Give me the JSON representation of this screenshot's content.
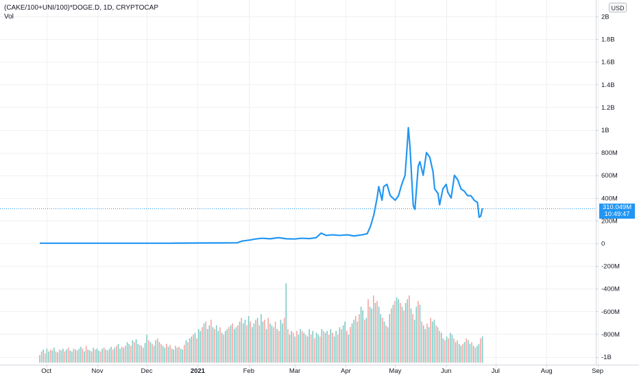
{
  "header": {
    "symbol_title": "(CAKE/100+UNI/100)*DOGE.D, 1D, CRYPTOCAP",
    "volume_label": "Vol"
  },
  "currency_button": "USD",
  "price_badge": {
    "value": "310.049M",
    "time": "10:49:47"
  },
  "colors": {
    "line": "#2196f3",
    "volume_up": "#7fcbc4",
    "volume_down": "#f5a3a3",
    "grid": "#eef0f3",
    "price_line": "#2196f3"
  },
  "chart_data": {
    "type": "line",
    "title": "(CAKE/100+UNI/100)*DOGE.D, 1D, CRYPTOCAP",
    "y_ticks": [
      "2B",
      "1.8B",
      "1.6B",
      "1.4B",
      "1.2B",
      "1B",
      "800M",
      "600M",
      "400M",
      "200M",
      "0",
      "-200M",
      "-400M",
      "-600M",
      "-800M",
      "-1B"
    ],
    "y_tick_values": [
      2000,
      1800,
      1600,
      1400,
      1200,
      1000,
      800,
      600,
      400,
      200,
      0,
      -200,
      -400,
      -600,
      -800,
      -1000
    ],
    "x_ticks": [
      {
        "label": "Oct",
        "bold": false
      },
      {
        "label": "Nov",
        "bold": false
      },
      {
        "label": "Dec",
        "bold": false
      },
      {
        "label": "2021",
        "bold": true
      },
      {
        "label": "Feb",
        "bold": false
      },
      {
        "label": "Mar",
        "bold": false
      },
      {
        "label": "Apr",
        "bold": false
      },
      {
        "label": "May",
        "bold": false
      },
      {
        "label": "Jun",
        "bold": false
      },
      {
        "label": "Jul",
        "bold": false
      },
      {
        "label": "Aug",
        "bold": false
      },
      {
        "label": "Sep",
        "bold": false
      }
    ],
    "ylim": [
      -1050,
      2050
    ],
    "series": [
      {
        "values_unit": "millions",
        "points": [
          [
            "2020-09-27",
            1
          ],
          [
            "2020-10-15",
            1
          ],
          [
            "2020-11-15",
            1
          ],
          [
            "2020-12-15",
            1
          ],
          [
            "2021-01-01",
            3
          ],
          [
            "2021-01-15",
            4
          ],
          [
            "2021-01-25",
            5
          ],
          [
            "2021-01-28",
            20
          ],
          [
            "2021-02-02",
            30
          ],
          [
            "2021-02-05",
            38
          ],
          [
            "2021-02-09",
            45
          ],
          [
            "2021-02-14",
            40
          ],
          [
            "2021-02-19",
            50
          ],
          [
            "2021-02-24",
            40
          ],
          [
            "2021-03-01",
            38
          ],
          [
            "2021-03-05",
            45
          ],
          [
            "2021-03-10",
            42
          ],
          [
            "2021-03-14",
            50
          ],
          [
            "2021-03-17",
            90
          ],
          [
            "2021-03-20",
            70
          ],
          [
            "2021-03-24",
            75
          ],
          [
            "2021-03-28",
            70
          ],
          [
            "2021-04-02",
            75
          ],
          [
            "2021-04-06",
            65
          ],
          [
            "2021-04-11",
            75
          ],
          [
            "2021-04-14",
            85
          ],
          [
            "2021-04-16",
            150
          ],
          [
            "2021-04-18",
            250
          ],
          [
            "2021-04-20",
            400
          ],
          [
            "2021-04-21",
            500
          ],
          [
            "2021-04-23",
            380
          ],
          [
            "2021-04-24",
            500
          ],
          [
            "2021-04-26",
            520
          ],
          [
            "2021-04-28",
            420
          ],
          [
            "2021-05-01",
            380
          ],
          [
            "2021-05-03",
            420
          ],
          [
            "2021-05-05",
            520
          ],
          [
            "2021-05-07",
            600
          ],
          [
            "2021-05-08",
            800
          ],
          [
            "2021-05-09",
            1020
          ],
          [
            "2021-05-10",
            850
          ],
          [
            "2021-05-11",
            580
          ],
          [
            "2021-05-12",
            330
          ],
          [
            "2021-05-13",
            300
          ],
          [
            "2021-05-15",
            680
          ],
          [
            "2021-05-16",
            720
          ],
          [
            "2021-05-18",
            600
          ],
          [
            "2021-05-20",
            800
          ],
          [
            "2021-05-22",
            760
          ],
          [
            "2021-05-24",
            630
          ],
          [
            "2021-05-25",
            480
          ],
          [
            "2021-05-27",
            440
          ],
          [
            "2021-05-28",
            340
          ],
          [
            "2021-05-30",
            480
          ],
          [
            "2021-06-01",
            520
          ],
          [
            "2021-06-02",
            450
          ],
          [
            "2021-06-04",
            400
          ],
          [
            "2021-06-06",
            600
          ],
          [
            "2021-06-08",
            560
          ],
          [
            "2021-06-10",
            480
          ],
          [
            "2021-06-12",
            460
          ],
          [
            "2021-06-14",
            420
          ],
          [
            "2021-06-16",
            420
          ],
          [
            "2021-06-18",
            380
          ],
          [
            "2021-06-20",
            360
          ],
          [
            "2021-06-21",
            230
          ],
          [
            "2021-06-22",
            240
          ],
          [
            "2021-06-23",
            310
          ]
        ]
      }
    ],
    "volume": {
      "start_date": "2020-09-27",
      "end_date": "2021-06-23",
      "ylim": [
        0,
        100
      ],
      "values": [
        8,
        12,
        14,
        10,
        15,
        12,
        14,
        13,
        16,
        12,
        11,
        14,
        13,
        15,
        12,
        14,
        16,
        13,
        12,
        15,
        14,
        13,
        15,
        17,
        15,
        12,
        18,
        14,
        13,
        12,
        16,
        14,
        15,
        13,
        12,
        15,
        16,
        14,
        13,
        15,
        17,
        14,
        16,
        18,
        20,
        15,
        17,
        16,
        18,
        22,
        20,
        18,
        24,
        22,
        25,
        20,
        19,
        18,
        16,
        21,
        30,
        24,
        22,
        20,
        18,
        24,
        26,
        22,
        20,
        18,
        16,
        20,
        17,
        19,
        15,
        14,
        18,
        16,
        17,
        15,
        14,
        19,
        24,
        22,
        26,
        28,
        30,
        32,
        26,
        36,
        34,
        38,
        42,
        44,
        36,
        40,
        46,
        38,
        36,
        40,
        34,
        38,
        32,
        30,
        34,
        36,
        38,
        40,
        42,
        36,
        38,
        40,
        44,
        48,
        42,
        46,
        40,
        50,
        44,
        38,
        42,
        46,
        48,
        40,
        52,
        44,
        46,
        36,
        48,
        42,
        40,
        38,
        44,
        36,
        34,
        46,
        42,
        48,
        85,
        36,
        30,
        34,
        32,
        28,
        34,
        30,
        36,
        34,
        32,
        30,
        28,
        36,
        30,
        34,
        26,
        32,
        30,
        28,
        36,
        34,
        32,
        34,
        30,
        36,
        32,
        28,
        34,
        30,
        38,
        36,
        40,
        44,
        34,
        30,
        38,
        42,
        46,
        50,
        44,
        52,
        60,
        56,
        46,
        48,
        68,
        60,
        58,
        72,
        64,
        66,
        60,
        52,
        48,
        44,
        40,
        38,
        52,
        58,
        62,
        66,
        70,
        68,
        64,
        60,
        56,
        64,
        68,
        72,
        58,
        52,
        46,
        60,
        66,
        62,
        44,
        40,
        36,
        42,
        38,
        48,
        44,
        46,
        40,
        38,
        34,
        32,
        26,
        24,
        28,
        26,
        32,
        30,
        26,
        22,
        24,
        20,
        18,
        20,
        22,
        26,
        24,
        20,
        22,
        18,
        16,
        18,
        20,
        26,
        28
      ],
      "up": [
        true,
        false,
        true,
        false,
        true,
        true,
        false,
        true,
        true,
        false,
        true,
        false,
        true,
        true,
        false,
        true,
        false,
        true,
        true,
        false,
        true,
        false,
        true,
        true,
        false,
        true,
        false,
        true,
        true,
        false,
        true,
        false,
        true,
        true,
        false,
        true,
        false,
        true,
        false,
        true,
        true,
        false,
        true,
        false,
        true,
        true,
        false,
        true,
        false,
        true,
        true,
        false,
        true,
        false,
        true,
        true,
        false,
        true,
        false,
        true,
        true,
        false,
        true,
        false,
        true,
        true,
        false,
        true,
        false,
        true,
        true,
        false,
        true,
        false,
        true,
        true,
        false,
        true,
        false,
        true,
        true,
        false,
        true,
        false,
        true,
        true,
        false,
        true,
        false,
        true,
        true,
        false,
        true,
        false,
        true,
        true,
        false,
        true,
        false,
        true,
        true,
        false,
        true,
        false,
        true,
        true,
        false,
        true,
        false,
        true,
        true,
        false,
        true,
        false,
        true,
        true,
        false,
        true,
        false,
        true,
        true,
        false,
        true,
        false,
        true,
        true,
        false,
        true,
        false,
        true,
        true,
        false,
        false,
        true,
        false,
        true,
        true,
        false,
        true,
        false,
        true,
        true,
        false,
        true,
        false,
        true,
        true,
        false,
        true,
        false,
        true,
        true,
        false,
        true,
        false,
        true,
        true,
        false,
        true,
        false,
        true,
        true,
        false,
        true,
        false,
        true,
        true,
        false,
        true,
        false,
        true,
        true,
        false,
        true,
        false,
        true,
        true,
        false,
        true,
        false,
        true,
        true,
        false,
        true,
        false,
        true,
        true,
        false,
        true,
        false,
        true,
        true,
        false,
        true,
        false,
        true,
        true,
        false,
        true,
        false,
        true,
        true,
        false,
        true,
        false,
        true,
        true,
        false,
        true,
        false,
        true,
        true,
        false,
        true,
        false,
        true,
        true,
        false,
        true,
        false,
        true,
        true,
        false,
        true,
        false,
        true,
        true,
        false,
        true,
        false,
        true,
        true,
        false,
        true,
        false,
        true,
        true,
        false,
        true,
        false,
        true,
        true,
        false,
        true,
        false,
        true,
        true,
        false,
        true,
        true,
        true
      ]
    }
  }
}
